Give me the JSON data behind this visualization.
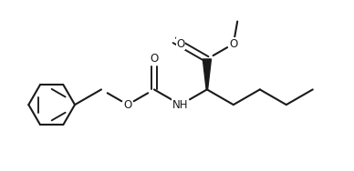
{
  "background": "#ffffff",
  "lc": "#1a1a1a",
  "lw": 1.5,
  "fs": 8.5,
  "figsize": [
    3.88,
    1.88
  ],
  "dpi": 100,
  "xlim": [
    0.0,
    10.5
  ],
  "ylim": [
    0.5,
    5.8
  ]
}
